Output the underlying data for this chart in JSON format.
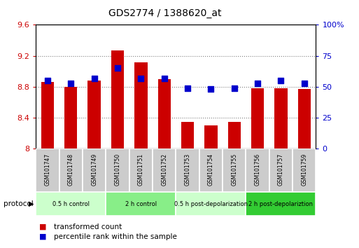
{
  "title": "GDS2774 / 1388620_at",
  "samples": [
    "GSM101747",
    "GSM101748",
    "GSM101749",
    "GSM101750",
    "GSM101751",
    "GSM101752",
    "GSM101753",
    "GSM101754",
    "GSM101755",
    "GSM101756",
    "GSM101757",
    "GSM101759"
  ],
  "bar_values": [
    8.86,
    8.8,
    8.88,
    9.27,
    9.12,
    8.9,
    8.35,
    8.3,
    8.35,
    8.78,
    8.78,
    8.77
  ],
  "dot_values": [
    55,
    53,
    57,
    65,
    57,
    57,
    49,
    48,
    49,
    53,
    55,
    53
  ],
  "bar_bottom": 8.0,
  "ylim_left": [
    8.0,
    9.6
  ],
  "ylim_right": [
    0,
    100
  ],
  "yticks_left": [
    8.0,
    8.4,
    8.8,
    9.2,
    9.6
  ],
  "yticks_right": [
    0,
    25,
    50,
    75,
    100
  ],
  "ytick_labels_left": [
    "8",
    "8.4",
    "8.8",
    "9.2",
    "9.6"
  ],
  "ytick_labels_right": [
    "0",
    "25",
    "50",
    "75",
    "100%"
  ],
  "bar_color": "#cc0000",
  "dot_color": "#0000cc",
  "bar_width": 0.55,
  "groups": [
    {
      "label": "0.5 h control",
      "start": 0,
      "end": 3,
      "color": "#ccffcc"
    },
    {
      "label": "2 h control",
      "start": 3,
      "end": 6,
      "color": "#88ee88"
    },
    {
      "label": "0.5 h post-depolarization",
      "start": 6,
      "end": 9,
      "color": "#ccffcc"
    },
    {
      "label": "2 h post-depolariztion",
      "start": 9,
      "end": 12,
      "color": "#33cc33"
    }
  ],
  "protocol_label": "protocol",
  "legend_bar_label": "transformed count",
  "legend_dot_label": "percentile rank within the sample",
  "tick_label_color_left": "#cc0000",
  "tick_label_color_right": "#0000cc",
  "bg_color": "#ffffff",
  "xticklabel_bg": "#cccccc"
}
